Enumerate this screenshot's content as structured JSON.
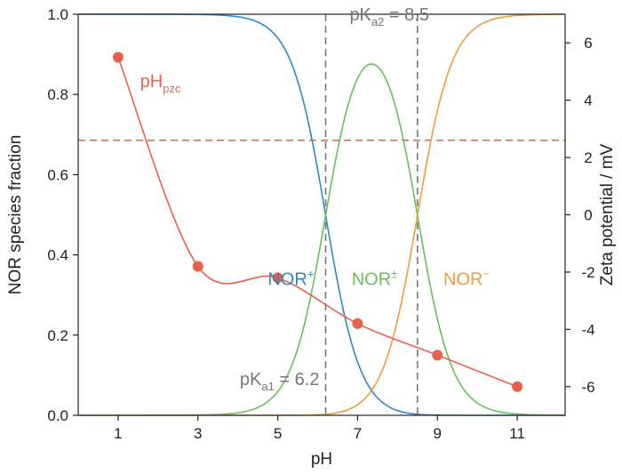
{
  "chart_data": {
    "type": "line",
    "xlabel": "pH",
    "ylabel_left": "NOR species fraction",
    "ylabel_right": "Zeta potential / mV",
    "xlim": [
      0,
      12.2
    ],
    "ylim_left": [
      0,
      1.0
    ],
    "ylim_right": [
      -7,
      7
    ],
    "x_ticks": [
      1,
      3,
      5,
      7,
      9,
      11
    ],
    "y_left_ticks": [
      0.0,
      0.2,
      0.4,
      0.6,
      0.8,
      1.0
    ],
    "y_left_tick_labels": [
      "0.0",
      "0.2",
      "0.4",
      "0.6",
      "0.8",
      "1.0"
    ],
    "y_right_ticks": [
      -6,
      -4,
      -2,
      0,
      2,
      4,
      6
    ],
    "colors": {
      "cation": "#2f87c8",
      "zwitterion": "#6abf58",
      "anion": "#f29a3e",
      "zeta": "#e8604c",
      "pka": "#777777"
    },
    "species": [
      {
        "name": "NOR+",
        "label_main": "NOR",
        "label_sup": "+",
        "color": "#2f87c8",
        "label_x": 4.75,
        "label_y": 0.325
      },
      {
        "name": "NOR±",
        "label_main": "NOR",
        "label_sup": "±",
        "color": "#6abf58",
        "label_x": 6.85,
        "label_y": 0.325
      },
      {
        "name": "NOR−",
        "label_main": "NOR",
        "label_sup": "−",
        "color": "#f29a3e",
        "label_x": 9.15,
        "label_y": 0.325
      }
    ],
    "pka": [
      {
        "value": 6.2,
        "label_main": "pK",
        "label_sub": "a1",
        "label_tail": " = 6.2",
        "label_x": 4.05,
        "label_y": 0.075
      },
      {
        "value": 8.5,
        "label_main": "pK",
        "label_sub": "a2",
        "label_tail": " = 8.5",
        "label_x": 6.8,
        "label_y": 0.985
      }
    ],
    "zeta_points": [
      {
        "x": 1,
        "y": 5.5
      },
      {
        "x": 3,
        "y": -1.8
      },
      {
        "x": 5,
        "y": -2.2
      },
      {
        "x": 7,
        "y": -3.8
      },
      {
        "x": 9,
        "y": -4.9
      },
      {
        "x": 11,
        "y": -6.0
      }
    ],
    "pzc_line_y": 2.6,
    "pzc_label": {
      "main": "pH",
      "sub": "pzc",
      "x": 1.55,
      "y": 4.45
    }
  }
}
